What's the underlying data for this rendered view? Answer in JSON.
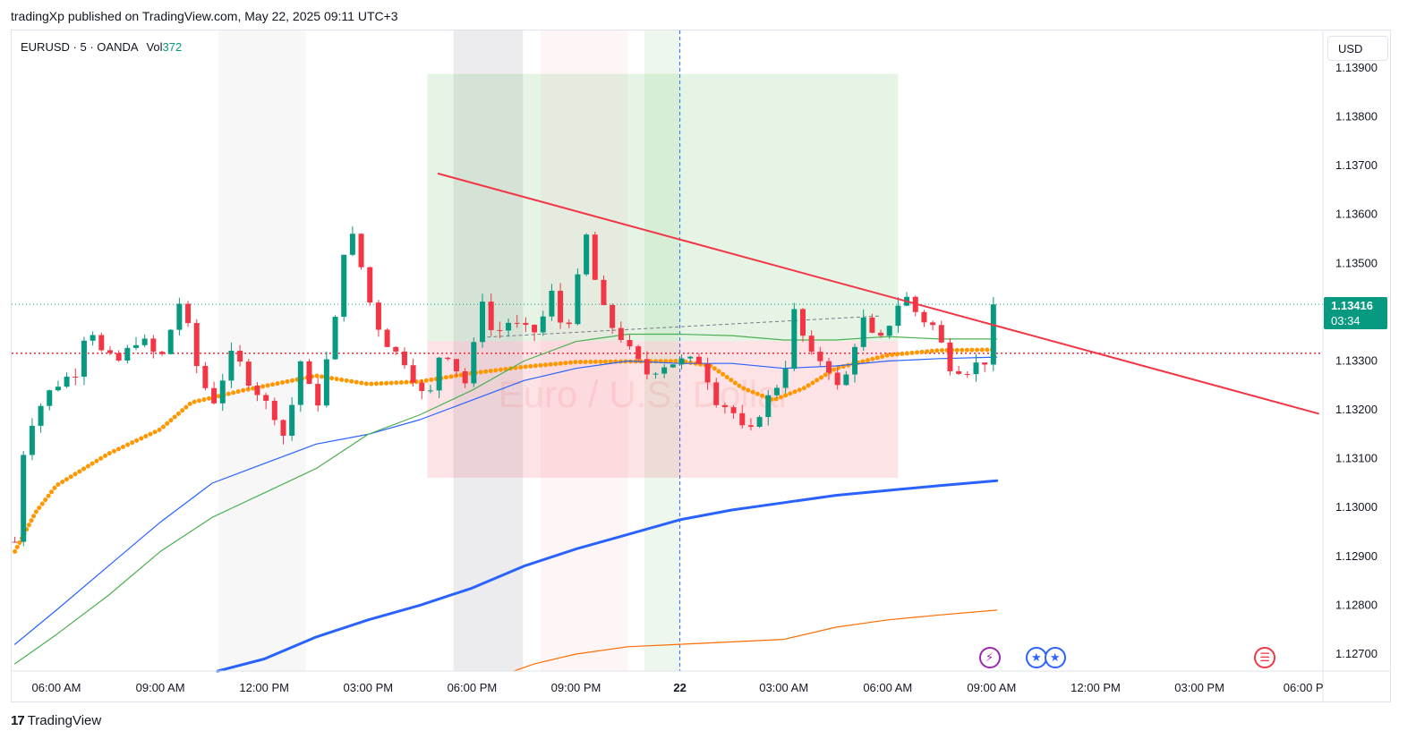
{
  "header": {
    "published_line": "tradingXp published on TradingView.com, May 22, 2025 09:11 UTC+3"
  },
  "legend": {
    "symbol": "EURUSD",
    "interval": "5",
    "exchange": "OANDA",
    "vol_label": "Vol",
    "vol_value": "372"
  },
  "currency_button": {
    "label": "USD"
  },
  "last_price": {
    "value": "1.13416",
    "countdown": "03:34",
    "color": "#089981"
  },
  "footer": {
    "brand": "TradingView"
  },
  "watermark": {
    "text": "Euro / U.S. Dollar"
  },
  "events": [
    {
      "name": "economic-event-icon",
      "glyph": "⚡",
      "color": "#9c27b0"
    },
    {
      "name": "eu-event-icon-1",
      "glyph": "★",
      "color": "#2962ff"
    },
    {
      "name": "eu-event-icon-2",
      "glyph": "★",
      "color": "#2962ff"
    },
    {
      "name": "us-event-icon",
      "glyph": "☰",
      "color": "#f23645"
    }
  ],
  "chart_data": {
    "type": "candlestick",
    "title": "EURUSD · 5 · OANDA",
    "y_axis": {
      "range": [
        1.12665,
        1.13915
      ],
      "ticks": [
        "1.13900",
        "1.13800",
        "1.13700",
        "1.13600",
        "1.13500",
        "1.13400",
        "1.13300",
        "1.13200",
        "1.13100",
        "1.13000",
        "1.12900",
        "1.12800",
        "1.12700"
      ]
    },
    "x_axis": {
      "range_hours": [
        -0.4,
        12.5
      ],
      "ticks": [
        {
          "label": "06:00 AM",
          "h": 0
        },
        {
          "label": "09:00 AM",
          "h": 1
        },
        {
          "label": "12:00 PM",
          "h": 2
        },
        {
          "label": "03:00 PM",
          "h": 3
        },
        {
          "label": "06:00 PM",
          "h": 4
        },
        {
          "label": "09:00 PM",
          "h": 5
        },
        {
          "label": "22",
          "h": 6,
          "bold": true
        },
        {
          "label": "03:00 AM",
          "h": 7
        },
        {
          "label": "06:00 AM",
          "h": 8
        },
        {
          "label": "09:00 AM",
          "h": 9
        },
        {
          "label": "12:00 PM",
          "h": 10
        },
        {
          "label": "03:00 PM",
          "h": 11
        },
        {
          "label": "06:00 P",
          "h": 12
        }
      ]
    },
    "session_bands": [
      {
        "from": 1.56,
        "to": 2.4,
        "color": "#787b86",
        "opacity": 0.06
      },
      {
        "from": 3.82,
        "to": 4.49,
        "color": "#787b86",
        "opacity": 0.14
      },
      {
        "from": 4.66,
        "to": 5.5,
        "color": "#f23645",
        "opacity": 0.05
      },
      {
        "from": 5.66,
        "to": 6.0,
        "color": "#4caf50",
        "opacity": 0.1
      }
    ],
    "day_separator_h": 6,
    "position_tool": {
      "start_h": 3.57,
      "end_h": 8.1,
      "entry": 1.13341,
      "target": 1.13888,
      "stop": 1.13061
    },
    "trendline": {
      "points": [
        [
          3.67,
          1.13684
        ],
        [
          12.15,
          1.13192
        ]
      ],
      "color": "#f23645"
    },
    "horizontal_lines": [
      {
        "price": 1.13416,
        "color": "#089981",
        "style": "dotted",
        "label": "last price"
      },
      {
        "price": 1.13316,
        "color": "#f23645",
        "style": "dotted",
        "label": "level"
      }
    ],
    "candle_colors": {
      "up": "#089981",
      "down": "#f23645"
    },
    "series": [
      {
        "name": "MA fast (orange dots)",
        "color": "#ff9800",
        "style": "thick",
        "points": [
          [
            -0.4,
            1.1291
          ],
          [
            -0.2,
            1.1299
          ],
          [
            0,
            1.13045
          ],
          [
            0.5,
            1.1311
          ],
          [
            1,
            1.1316
          ],
          [
            1.3,
            1.13215
          ],
          [
            1.8,
            1.1324
          ],
          [
            2.5,
            1.1327
          ],
          [
            3,
            1.13253
          ],
          [
            3.5,
            1.13258
          ],
          [
            4,
            1.13275
          ],
          [
            4.5,
            1.13288
          ],
          [
            5,
            1.13298
          ],
          [
            5.5,
            1.13299
          ],
          [
            6,
            1.133
          ],
          [
            6.3,
            1.1329
          ],
          [
            6.6,
            1.13245
          ],
          [
            6.9,
            1.1322
          ],
          [
            7.2,
            1.13245
          ],
          [
            7.5,
            1.13285
          ],
          [
            8,
            1.13312
          ],
          [
            8.5,
            1.13322
          ],
          [
            9.05,
            1.13323
          ]
        ]
      },
      {
        "name": "MA 200 (blue thin)",
        "color": "#2962ff",
        "style": "thin",
        "points": [
          [
            -0.4,
            1.1272
          ],
          [
            0,
            1.1279
          ],
          [
            0.5,
            1.1288
          ],
          [
            1,
            1.1297
          ],
          [
            1.5,
            1.1305
          ],
          [
            2,
            1.1309
          ],
          [
            2.5,
            1.1313
          ],
          [
            3,
            1.1315
          ],
          [
            3.5,
            1.1318
          ],
          [
            4,
            1.1322
          ],
          [
            4.5,
            1.1326
          ],
          [
            5,
            1.13285
          ],
          [
            5.5,
            1.133
          ],
          [
            6,
            1.13295
          ],
          [
            6.5,
            1.13295
          ],
          [
            7,
            1.13285
          ],
          [
            7.5,
            1.1329
          ],
          [
            8,
            1.133
          ],
          [
            8.5,
            1.13305
          ],
          [
            9.05,
            1.13308
          ]
        ]
      },
      {
        "name": "MA 200 (green thin)",
        "color": "#4caf50",
        "style": "thin",
        "points": [
          [
            -0.4,
            1.1268
          ],
          [
            0,
            1.1274
          ],
          [
            0.5,
            1.1282
          ],
          [
            1,
            1.1291
          ],
          [
            1.5,
            1.1298
          ],
          [
            2,
            1.1303
          ],
          [
            2.5,
            1.1308
          ],
          [
            3,
            1.1315
          ],
          [
            3.5,
            1.1319
          ],
          [
            4,
            1.1324
          ],
          [
            4.5,
            1.133
          ],
          [
            5,
            1.1334
          ],
          [
            5.5,
            1.13355
          ],
          [
            6,
            1.13355
          ],
          [
            6.5,
            1.13352
          ],
          [
            7,
            1.13343
          ],
          [
            7.5,
            1.13343
          ],
          [
            8,
            1.1335
          ],
          [
            8.5,
            1.13345
          ],
          [
            9.05,
            1.13345
          ]
        ]
      },
      {
        "name": "MA slow (blue thick)",
        "color": "#2962ff",
        "style": "thick",
        "points": [
          [
            1.55,
            1.12665
          ],
          [
            2,
            1.1269
          ],
          [
            2.5,
            1.12735
          ],
          [
            3,
            1.1277
          ],
          [
            3.5,
            1.128
          ],
          [
            4,
            1.12835
          ],
          [
            4.5,
            1.1288
          ],
          [
            5,
            1.12915
          ],
          [
            5.5,
            1.12945
          ],
          [
            6,
            1.12975
          ],
          [
            6.5,
            1.12995
          ],
          [
            7,
            1.1301
          ],
          [
            7.5,
            1.13025
          ],
          [
            8,
            1.13035
          ],
          [
            8.5,
            1.13045
          ],
          [
            9.05,
            1.13055
          ]
        ]
      },
      {
        "name": "MA slowest (orange thin)",
        "color": "#ff6d00",
        "style": "thin",
        "points": [
          [
            4.4,
            1.12665
          ],
          [
            4.6,
            1.1268
          ],
          [
            5,
            1.127
          ],
          [
            5.5,
            1.12715
          ],
          [
            6,
            1.1272
          ],
          [
            6.5,
            1.12725
          ],
          [
            7,
            1.1273
          ],
          [
            7.5,
            1.12755
          ],
          [
            8,
            1.1277
          ],
          [
            8.5,
            1.1278
          ],
          [
            9.05,
            1.1279
          ]
        ]
      }
    ],
    "price_path_anchors": [
      [
        -0.4,
        1.1293
      ],
      [
        -0.3,
        1.1315
      ],
      [
        -0.1,
        1.1323
      ],
      [
        0.05,
        1.1326
      ],
      [
        0.2,
        1.1328
      ],
      [
        0.3,
        1.13385
      ],
      [
        0.45,
        1.1331
      ],
      [
        0.6,
        1.133
      ],
      [
        0.8,
        1.1335
      ],
      [
        1.0,
        1.133
      ],
      [
        1.2,
        1.1343
      ],
      [
        1.35,
        1.1329
      ],
      [
        1.5,
        1.1321
      ],
      [
        1.7,
        1.1332
      ],
      [
        1.85,
        1.1326
      ],
      [
        2.1,
        1.1319
      ],
      [
        2.2,
        1.1314
      ],
      [
        2.35,
        1.133
      ],
      [
        2.5,
        1.132
      ],
      [
        2.7,
        1.134
      ],
      [
        2.8,
        1.1359
      ],
      [
        2.95,
        1.1348
      ],
      [
        3.05,
        1.1339
      ],
      [
        3.2,
        1.1333
      ],
      [
        3.35,
        1.133
      ],
      [
        3.55,
        1.1322
      ],
      [
        3.65,
        1.1325
      ],
      [
        3.7,
        1.1334
      ],
      [
        3.8,
        1.133
      ],
      [
        3.95,
        1.1325
      ],
      [
        4.1,
        1.1343
      ],
      [
        4.2,
        1.1335
      ],
      [
        4.35,
        1.1338
      ],
      [
        4.55,
        1.1336
      ],
      [
        4.65,
        1.1336
      ],
      [
        4.75,
        1.1345
      ],
      [
        4.85,
        1.1338
      ],
      [
        5.0,
        1.1339
      ],
      [
        5.05,
        1.1362
      ],
      [
        5.15,
        1.1349
      ],
      [
        5.3,
        1.1338
      ],
      [
        5.4,
        1.1336
      ],
      [
        5.55,
        1.1331
      ],
      [
        5.7,
        1.1327
      ],
      [
        5.8,
        1.1329
      ],
      [
        6.0,
        1.133
      ],
      [
        6.2,
        1.133
      ],
      [
        6.35,
        1.1322
      ],
      [
        6.5,
        1.132
      ],
      [
        6.65,
        1.1314
      ],
      [
        6.8,
        1.1321
      ],
      [
        7.0,
        1.1327
      ],
      [
        7.1,
        1.134
      ],
      [
        7.25,
        1.1331
      ],
      [
        7.4,
        1.133
      ],
      [
        7.55,
        1.1323
      ],
      [
        7.65,
        1.1331
      ],
      [
        7.75,
        1.1339
      ],
      [
        7.9,
        1.1333
      ],
      [
        8.0,
        1.1337
      ],
      [
        8.15,
        1.1344
      ],
      [
        8.3,
        1.1339
      ],
      [
        8.45,
        1.1337
      ],
      [
        8.6,
        1.1329
      ],
      [
        8.75,
        1.1328
      ],
      [
        8.9,
        1.133
      ],
      [
        9.0,
        1.133
      ],
      [
        9.05,
        1.13416
      ]
    ]
  }
}
